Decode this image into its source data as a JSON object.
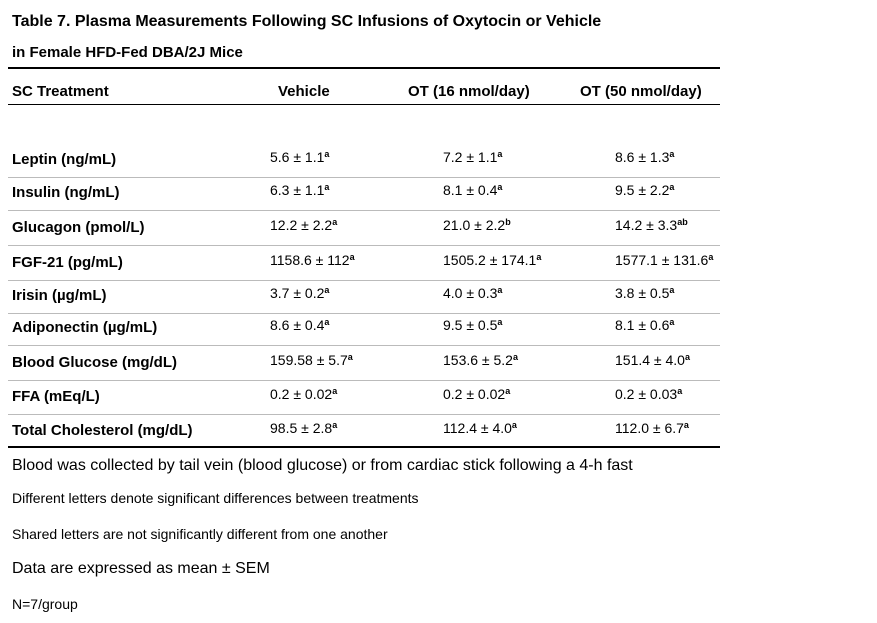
{
  "header": {
    "title_line_1": "Table 7.  Plasma Measurements Following SC Infusions of Oxytocin or Vehicle",
    "title_line_2": "in Female HFD-Fed DBA/2J Mice"
  },
  "table": {
    "columns": [
      "SC Treatment",
      "Vehicle",
      "OT (16 nmol/day)",
      "OT (50 nmol/day)"
    ],
    "rows": [
      {
        "label": "Leptin (ng/mL)",
        "cells": [
          {
            "value": "5.6 ± 1.1",
            "sup": "a"
          },
          {
            "value": "7.2 ± 1.1",
            "sup": "a"
          },
          {
            "value": "8.6 ± 1.3",
            "sup": "a"
          }
        ]
      },
      {
        "label": "Insulin (ng/mL)",
        "cells": [
          {
            "value": "6.3 ± 1.1",
            "sup": "a"
          },
          {
            "value": "8.1 ± 0.4",
            "sup": "a"
          },
          {
            "value": "9.5 ± 2.2",
            "sup": "a"
          }
        ]
      },
      {
        "label": "Glucagon (pmol/L)",
        "cells": [
          {
            "value": "12.2 ± 2.2",
            "sup": "a"
          },
          {
            "value": "21.0 ± 2.2",
            "sup": "b"
          },
          {
            "value": "14.2 ± 3.3",
            "sup": "ab"
          }
        ]
      },
      {
        "label": "FGF-21 (pg/mL)",
        "cells": [
          {
            "value": "1158.6 ± 112",
            "sup": "a"
          },
          {
            "value": "1505.2 ± 174.1",
            "sup": "a"
          },
          {
            "value": "1577.1 ± 131.6",
            "sup": "a"
          }
        ]
      },
      {
        "label": "Irisin (µg/mL)",
        "cells": [
          {
            "value": "3.7 ± 0.2",
            "sup": "a"
          },
          {
            "value": "4.0 ± 0.3",
            "sup": "a"
          },
          {
            "value": "3.8 ± 0.5",
            "sup": "a"
          }
        ]
      },
      {
        "label": "Adiponectin (µg/mL)",
        "cells": [
          {
            "value": "8.6 ± 0.4",
            "sup": "a"
          },
          {
            "value": "9.5 ± 0.5",
            "sup": "a"
          },
          {
            "value": "8.1 ± 0.6",
            "sup": "a"
          }
        ]
      },
      {
        "label": "Blood Glucose (mg/dL)",
        "cells": [
          {
            "value": "159.58 ± 5.7",
            "sup": "a"
          },
          {
            "value": "153.6 ± 5.2",
            "sup": "a"
          },
          {
            "value": "151.4 ± 4.0",
            "sup": "a"
          }
        ]
      },
      {
        "label": "FFA (mEq/L)",
        "cells": [
          {
            "value": "0.2 ± 0.02",
            "sup": "a"
          },
          {
            "value": "0.2 ± 0.02",
            "sup": "a"
          },
          {
            "value": "0.2 ± 0.03",
            "sup": "a"
          }
        ]
      },
      {
        "label": "Total Cholesterol (mg/dL)",
        "cells": [
          {
            "value": "98.5 ± 2.8",
            "sup": "a"
          },
          {
            "value": "112.4 ± 4.0",
            "sup": "a"
          },
          {
            "value": "112.0 ± 6.7",
            "sup": "a"
          }
        ]
      }
    ]
  },
  "footnotes": [
    "Blood was collected by tail vein (blood glucose) or from cardiac stick following a 4-h fast",
    "Different letters denote significant differences between treatments",
    "Shared letters are not significantly different from one another",
    "Data are expressed as mean ± SEM",
    "N=7/group"
  ]
}
